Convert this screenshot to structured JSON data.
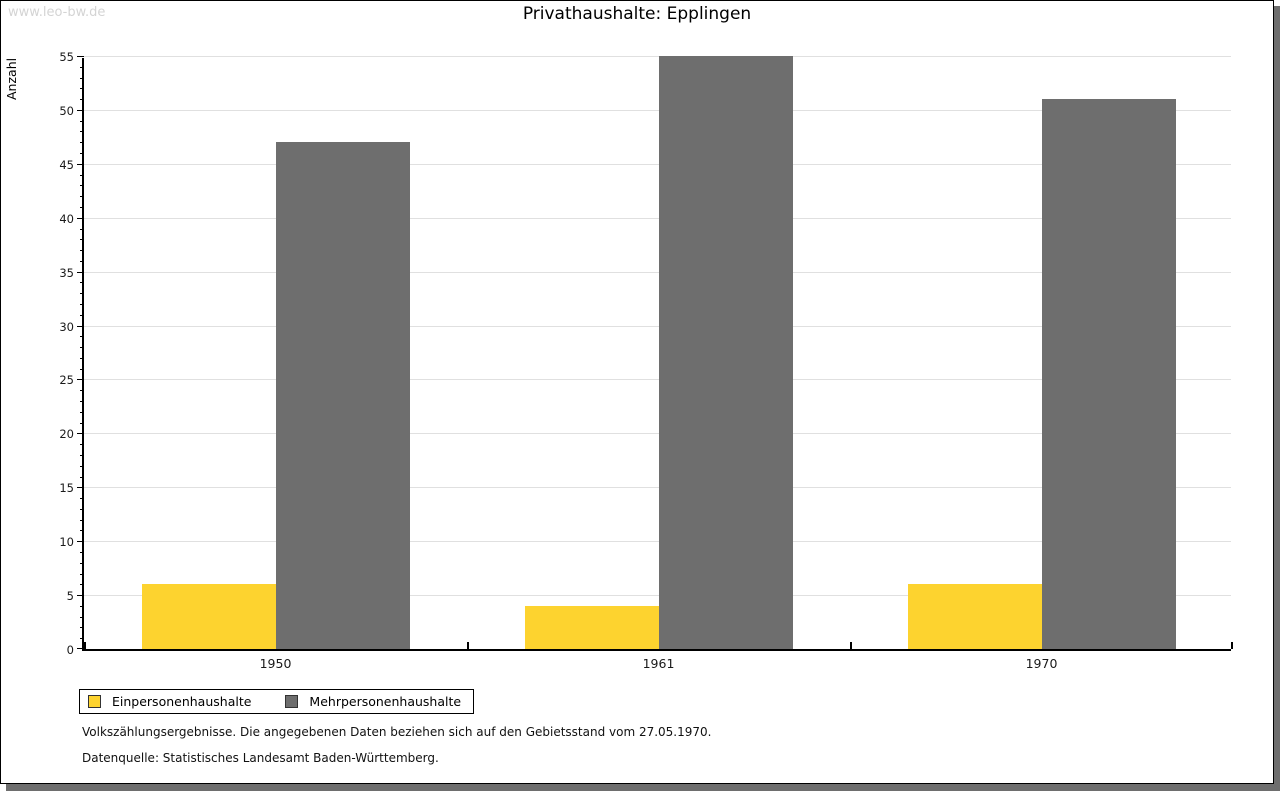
{
  "page": {
    "watermark": "www.leo-bw.de",
    "footer_line1": "Volkszählungsergebnisse. Die angegebenen Daten beziehen sich auf den Gebietsstand vom 27.05.1970.",
    "footer_line2": "Datenquelle: Statistisches Landesamt Baden-Württemberg."
  },
  "chart_data": {
    "type": "bar",
    "title": "Privathaushalte: Epplingen",
    "xlabel": "",
    "ylabel": "Anzahl",
    "categories": [
      "1950",
      "1961",
      "1970"
    ],
    "series": [
      {
        "name": "Einpersonenhaushalte",
        "color": "#fdd32f",
        "values": [
          6,
          4,
          6
        ]
      },
      {
        "name": "Mehrpersonenhaushalte",
        "color": "#6e6e6e",
        "values": [
          47,
          55,
          51
        ]
      }
    ],
    "ylim": [
      0,
      55
    ],
    "ytick_step": 5,
    "minor_tick_step": 1,
    "grid": true,
    "gridline_color": "#e0e0e0",
    "legend_position": "bottom-left"
  }
}
